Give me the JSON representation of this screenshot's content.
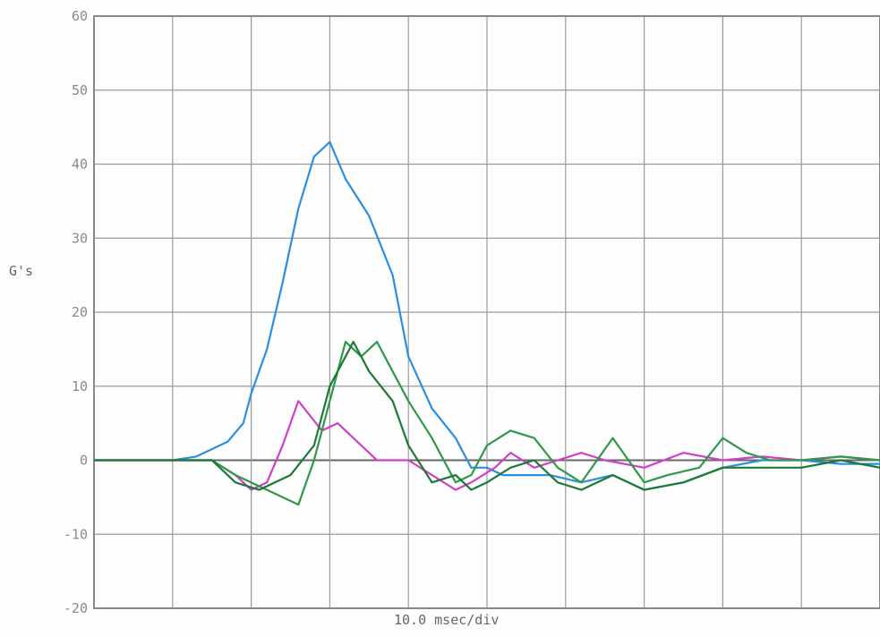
{
  "chart_data": {
    "type": "line",
    "ylabel": "G's",
    "xlabel": "10.0 msec/div",
    "ylim": [
      -20,
      60
    ],
    "yticks": [
      60,
      50,
      40,
      30,
      20,
      10,
      0,
      -10,
      -20
    ],
    "x_divisions": 10,
    "grid": true,
    "series": [
      {
        "color": "#2b8fe0",
        "x": [
          0,
          1,
          1.3,
          1.5,
          1.7,
          1.9,
          2.0,
          2.2,
          2.4,
          2.6,
          2.8,
          3.0,
          3.2,
          3.5,
          3.8,
          4.0,
          4.3,
          4.6,
          4.8,
          5.0,
          5.2,
          5.5,
          5.8,
          6.2,
          6.6,
          7.0,
          7.5,
          8.0,
          8.5,
          9.0,
          9.5,
          10.0
        ],
        "y": [
          0,
          0,
          0.5,
          1.5,
          2.5,
          5,
          9,
          15,
          24,
          34,
          41,
          43,
          38,
          33,
          25,
          14,
          7,
          3,
          -1,
          -1,
          -2,
          -2,
          -2,
          -3,
          -2,
          -4,
          -3,
          -1,
          0,
          0,
          -0.5,
          -0.5
        ]
      },
      {
        "color": "#d040c8",
        "x": [
          0,
          1.5,
          1.8,
          2.0,
          2.2,
          2.4,
          2.6,
          2.9,
          3.1,
          3.4,
          3.6,
          4.0,
          4.3,
          4.6,
          4.8,
          5.1,
          5.3,
          5.6,
          5.9,
          6.2,
          6.5,
          7.0,
          7.5,
          8.0,
          8.5,
          9.0,
          9.5,
          10.0
        ],
        "y": [
          0,
          0,
          -2,
          -4,
          -3,
          2,
          8,
          4,
          5,
          2,
          0,
          0,
          -2,
          -4,
          -3,
          -1,
          1,
          -1,
          0,
          1,
          0,
          -1,
          1,
          0,
          0.5,
          0,
          0.5,
          0
        ]
      },
      {
        "color": "#2e9a48",
        "x": [
          0,
          1.5,
          1.8,
          2.2,
          2.6,
          2.8,
          3.0,
          3.2,
          3.4,
          3.6,
          3.8,
          4.0,
          4.3,
          4.6,
          4.8,
          5.0,
          5.3,
          5.6,
          5.9,
          6.2,
          6.6,
          7.0,
          7.3,
          7.7,
          8.0,
          8.3,
          8.6,
          9.0,
          9.5,
          10.0
        ],
        "y": [
          0,
          0,
          -2,
          -4,
          -6,
          0,
          8,
          16,
          14,
          16,
          12,
          8,
          3,
          -3,
          -2,
          2,
          4,
          3,
          -1,
          -3,
          3,
          -3,
          -2,
          -1,
          3,
          1,
          0,
          0,
          0.5,
          0
        ]
      },
      {
        "color": "#1c7a36",
        "x": [
          0,
          1.5,
          1.8,
          2.1,
          2.5,
          2.8,
          3.0,
          3.3,
          3.5,
          3.8,
          4.0,
          4.3,
          4.6,
          4.8,
          5.0,
          5.3,
          5.6,
          5.9,
          6.2,
          6.6,
          7.0,
          7.5,
          8.0,
          8.5,
          9.0,
          9.5,
          10.0
        ],
        "y": [
          0,
          0,
          -3,
          -4,
          -2,
          2,
          10,
          16,
          12,
          8,
          2,
          -3,
          -2,
          -4,
          -3,
          -1,
          0,
          -3,
          -4,
          -2,
          -4,
          -3,
          -1,
          -1,
          -1,
          0,
          -1
        ]
      }
    ]
  }
}
